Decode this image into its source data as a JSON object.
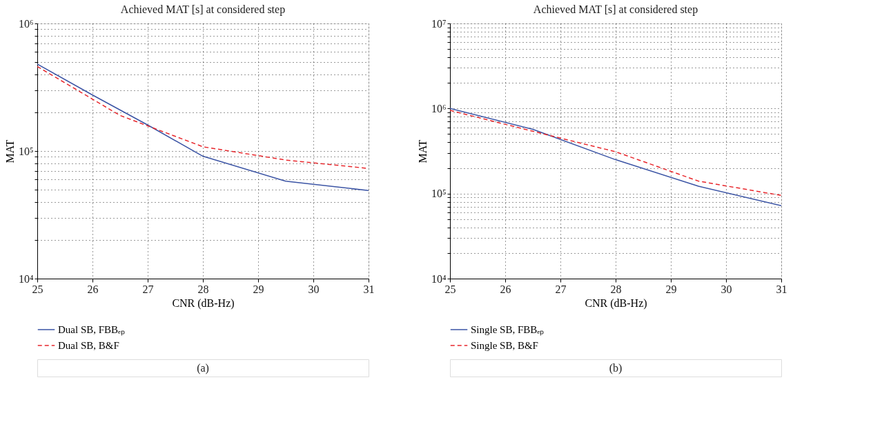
{
  "chart_data": [
    {
      "type": "line",
      "title": "Achieved MAT [s] at considered step",
      "xlabel": "CNR (dB-Hz)",
      "ylabel": "MAT",
      "log": "y",
      "grid": true,
      "legend": "bottom",
      "marker": "none",
      "xlim": [
        25,
        31
      ],
      "xticks": [
        25,
        26,
        27,
        28,
        29,
        30,
        31
      ],
      "ylim": [
        10000,
        1000000
      ],
      "yticks": [
        {
          "value": 10000,
          "label": "10⁴"
        },
        {
          "value": 20000,
          "label": null
        },
        {
          "value": 30000,
          "label": null
        },
        {
          "value": 40000,
          "label": null
        },
        {
          "value": 50000,
          "label": null
        },
        {
          "value": 60000,
          "label": null
        },
        {
          "value": 70000,
          "label": null
        },
        {
          "value": 80000,
          "label": null
        },
        {
          "value": 90000,
          "label": null
        },
        {
          "value": 100000,
          "label": "10⁵"
        },
        {
          "value": 200000,
          "label": null
        },
        {
          "value": 300000,
          "label": null
        },
        {
          "value": 400000,
          "label": null
        },
        {
          "value": 500000,
          "label": null
        },
        {
          "value": 600000,
          "label": null
        },
        {
          "value": 700000,
          "label": null
        },
        {
          "value": 800000,
          "label": null
        },
        {
          "value": 900000,
          "label": null
        },
        {
          "value": 1000000,
          "label": "10⁶"
        }
      ],
      "series": [
        {
          "name": "Dual SB, FBBₑₚ",
          "color": "#3a53a4",
          "line_style": "solid",
          "x": [
            25,
            26,
            27,
            28,
            29.5,
            31
          ],
          "values": [
            480000,
            275000,
            160000,
            91000,
            58000,
            49000
          ]
        },
        {
          "name": "Dual SB, B&F",
          "color": "#e8262b",
          "line_style": "dashed",
          "x": [
            25,
            26.5,
            28,
            29.5,
            31
          ],
          "values": [
            460000,
            190000,
            108000,
            85000,
            73000
          ]
        }
      ],
      "annotations": [
        "(a)"
      ]
    },
    {
      "type": "line",
      "title": "Achieved MAT [s] at considered step",
      "xlabel": "CNR (dB-Hz)",
      "ylabel": "MAT",
      "log": "y",
      "grid": true,
      "legend": "bottom",
      "marker": "none",
      "xlim": [
        25,
        31
      ],
      "xticks": [
        25,
        26,
        27,
        28,
        29,
        30,
        31
      ],
      "ylim": [
        10000,
        10000000
      ],
      "yticks": [
        {
          "value": 10000,
          "label": "10⁴"
        },
        {
          "value": 20000,
          "label": null
        },
        {
          "value": 30000,
          "label": null
        },
        {
          "value": 40000,
          "label": null
        },
        {
          "value": 50000,
          "label": null
        },
        {
          "value": 60000,
          "label": null
        },
        {
          "value": 70000,
          "label": null
        },
        {
          "value": 80000,
          "label": null
        },
        {
          "value": 90000,
          "label": null
        },
        {
          "value": 100000,
          "label": "10⁵"
        },
        {
          "value": 200000,
          "label": null
        },
        {
          "value": 300000,
          "label": null
        },
        {
          "value": 400000,
          "label": null
        },
        {
          "value": 500000,
          "label": null
        },
        {
          "value": 600000,
          "label": null
        },
        {
          "value": 700000,
          "label": null
        },
        {
          "value": 800000,
          "label": null
        },
        {
          "value": 900000,
          "label": null
        },
        {
          "value": 1000000,
          "label": "10⁶"
        },
        {
          "value": 2000000,
          "label": null
        },
        {
          "value": 3000000,
          "label": null
        },
        {
          "value": 4000000,
          "label": null
        },
        {
          "value": 5000000,
          "label": null
        },
        {
          "value": 6000000,
          "label": null
        },
        {
          "value": 7000000,
          "label": null
        },
        {
          "value": 8000000,
          "label": null
        },
        {
          "value": 9000000,
          "label": null
        },
        {
          "value": 10000000,
          "label": "10⁷"
        }
      ],
      "series": [
        {
          "name": "Single SB, FBBₑₚ",
          "color": "#3a53a4",
          "line_style": "solid",
          "x": [
            25,
            26.5,
            28,
            29.5,
            31
          ],
          "values": [
            1000000,
            570000,
            250000,
            122000,
            72000
          ]
        },
        {
          "name": "Single SB, B&F",
          "color": "#e8262b",
          "line_style": "dashed",
          "x": [
            25,
            26.5,
            28,
            29.5,
            31
          ],
          "values": [
            950000,
            540000,
            310000,
            140000,
            95000
          ]
        }
      ],
      "annotations": [
        "(b)"
      ]
    }
  ]
}
